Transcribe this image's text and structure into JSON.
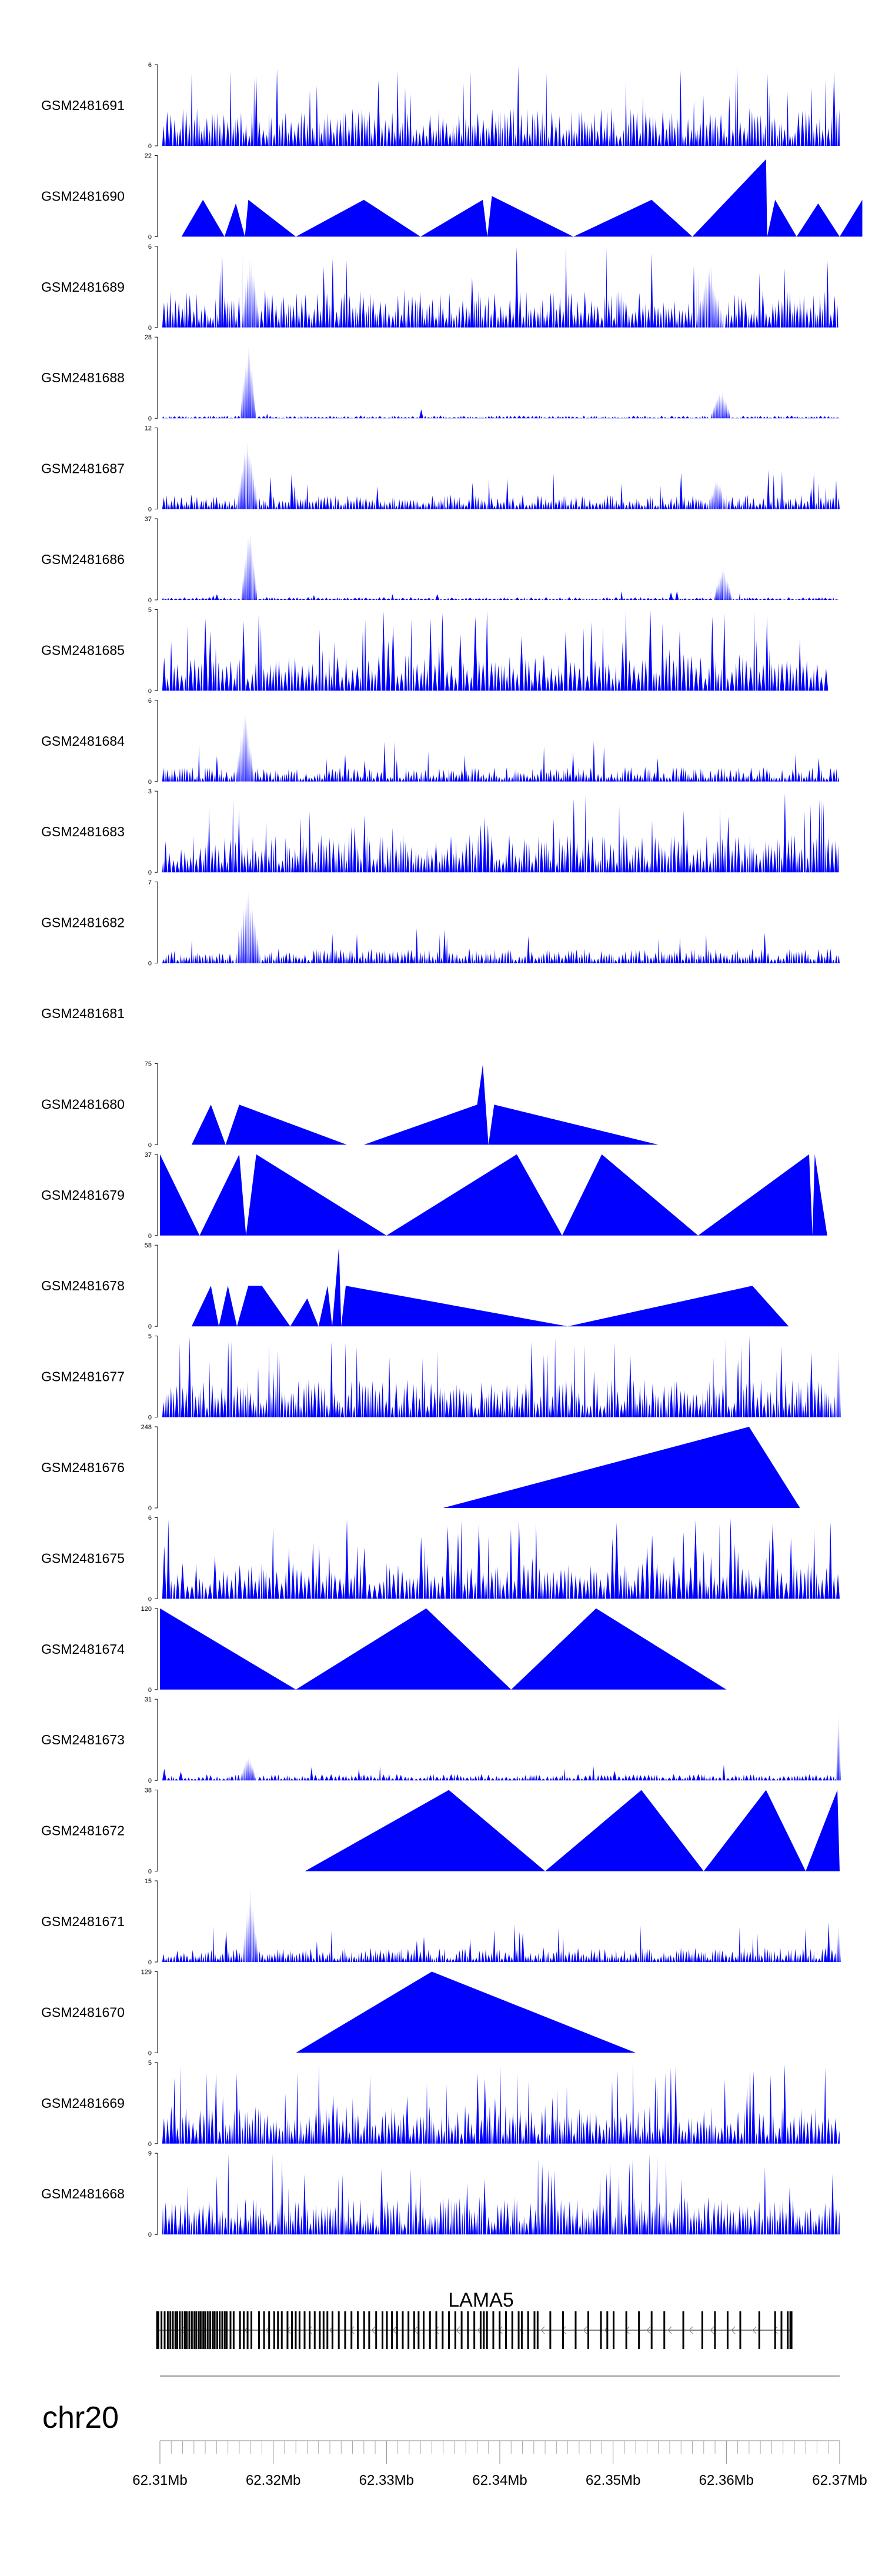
{
  "chart_data": {
    "type": "area",
    "chromosome": "chr20",
    "xlim": [
      62.31,
      62.37
    ],
    "x_ticks": [
      "62.31Mb",
      "62.32Mb",
      "62.33Mb",
      "62.34Mb",
      "62.35Mb",
      "62.36Mb",
      "62.37Mb"
    ],
    "x_tick_values": [
      62.31,
      62.32,
      62.33,
      62.34,
      62.35,
      62.36,
      62.37
    ],
    "gene": {
      "name": "LAMA5",
      "start": 62.3098,
      "end": 62.3657,
      "strand": "-"
    },
    "colors": {
      "signal": "#0000ff",
      "axis": "#000000",
      "gene": "#000000",
      "ideogram": "#999999"
    },
    "tracks": [
      {
        "name": "GSM2481691",
        "ymax": 6,
        "ymax_label": "6",
        "ymin_label": "0",
        "pattern": "dense",
        "seed": 11
      },
      {
        "name": "GSM2481690",
        "ymax": 22,
        "ymax_label": "22",
        "ymin_label": "0",
        "pattern": "peaks",
        "points": [
          [
            62.3119,
            0
          ],
          [
            62.3138,
            10
          ],
          [
            62.3157,
            0
          ],
          [
            62.3167,
            9
          ],
          [
            62.3175,
            0
          ],
          [
            62.3178,
            10
          ],
          [
            62.322,
            0
          ],
          [
            62.328,
            10
          ],
          [
            62.333,
            0
          ],
          [
            62.3385,
            10
          ],
          [
            62.3389,
            0
          ],
          [
            62.3393,
            11
          ],
          [
            62.3465,
            0
          ],
          [
            62.3534,
            10
          ],
          [
            62.357,
            0
          ],
          [
            62.3635,
            21
          ],
          [
            62.3636,
            0
          ],
          [
            62.3643,
            10
          ],
          [
            62.3662,
            0
          ],
          [
            62.3681,
            9
          ],
          [
            62.37,
            0
          ],
          [
            62.372,
            10
          ]
        ]
      },
      {
        "name": "GSM2481689",
        "ymax": 6,
        "ymax_label": "6",
        "ymin_label": "0",
        "pattern": "dense",
        "seed": 23,
        "bumps": [
          [
            62.318,
            5.5,
            0.0008
          ],
          [
            62.3585,
            4.5,
            0.0012
          ]
        ]
      },
      {
        "name": "GSM2481688",
        "ymax": 28,
        "ymax_label": "28",
        "ymin_label": "0",
        "pattern": "sparse",
        "seed": 31,
        "bumps": [
          [
            62.3178,
            26,
            0.0007
          ],
          [
            62.3595,
            10,
            0.0009
          ]
        ]
      },
      {
        "name": "GSM2481687",
        "ymax": 12,
        "ymax_label": "12",
        "ymin_label": "0",
        "pattern": "lowdense",
        "seed": 37,
        "bumps": [
          [
            62.3177,
            11,
            0.0009
          ],
          [
            62.3592,
            5,
            0.0008
          ]
        ]
      },
      {
        "name": "GSM2481686",
        "ymax": 37,
        "ymax_label": "37",
        "ymin_label": "0",
        "pattern": "sparse",
        "seed": 41,
        "bumps": [
          [
            62.3179,
            35,
            0.0007
          ],
          [
            62.3597,
            16,
            0.0008
          ]
        ]
      },
      {
        "name": "GSM2481685",
        "ymax": 5,
        "ymax_label": "5",
        "ymin_label": "0",
        "pattern": "spiky",
        "seed": 47,
        "xend": 62.369
      },
      {
        "name": "GSM2481684",
        "ymax": 6,
        "ymax_label": "6",
        "ymin_label": "0",
        "pattern": "lowdense",
        "seed": 53,
        "bumps": [
          [
            62.3175,
            5.5,
            0.0008
          ]
        ]
      },
      {
        "name": "GSM2481683",
        "ymax": 3,
        "ymax_label": "3",
        "ymin_label": "0",
        "pattern": "dense",
        "seed": 59
      },
      {
        "name": "GSM2481682",
        "ymax": 7,
        "ymax_label": "7",
        "ymin_label": "0",
        "pattern": "lowdense",
        "seed": 61,
        "bumps": [
          [
            62.3178,
            6.5,
            0.0011
          ]
        ]
      },
      {
        "name": "GSM2481681",
        "ymax": null,
        "ymax_label": "",
        "ymin_label": "",
        "pattern": "empty"
      },
      {
        "name": "GSM2481680",
        "ymax": 75,
        "ymax_label": "75",
        "ymin_label": "0",
        "pattern": "peaks",
        "points": [
          [
            62.3128,
            0
          ],
          [
            62.3145,
            37
          ],
          [
            62.3158,
            0
          ],
          [
            62.317,
            37
          ],
          [
            62.3265,
            0
          ],
          [
            62.328,
            0
          ],
          [
            62.338,
            37
          ],
          [
            62.3385,
            74
          ],
          [
            62.339,
            0
          ],
          [
            62.3395,
            37
          ],
          [
            62.354,
            0
          ]
        ]
      },
      {
        "name": "GSM2481679",
        "ymax": 37,
        "ymax_label": "37",
        "ymin_label": "0",
        "pattern": "peaks",
        "points": [
          [
            62.31,
            37
          ],
          [
            62.3135,
            0
          ],
          [
            62.317,
            37
          ],
          [
            62.3176,
            0
          ],
          [
            62.3185,
            37
          ],
          [
            62.33,
            0
          ],
          [
            62.3415,
            37
          ],
          [
            62.3455,
            0
          ],
          [
            62.349,
            37
          ],
          [
            62.3575,
            0
          ],
          [
            62.3673,
            37
          ],
          [
            62.3676,
            0
          ],
          [
            62.3678,
            37
          ],
          [
            62.3689,
            0
          ]
        ]
      },
      {
        "name": "GSM2481678",
        "ymax": 58,
        "ymax_label": "58",
        "ymin_label": "0",
        "pattern": "peaks",
        "points": [
          [
            62.3128,
            0
          ],
          [
            62.3145,
            29
          ],
          [
            62.3152,
            0
          ],
          [
            62.316,
            29
          ],
          [
            62.3168,
            0
          ],
          [
            62.3178,
            29
          ],
          [
            62.319,
            29
          ],
          [
            62.3215,
            0
          ],
          [
            62.323,
            20
          ],
          [
            62.324,
            0
          ],
          [
            62.3248,
            29
          ],
          [
            62.3252,
            0
          ],
          [
            62.3258,
            57
          ],
          [
            62.326,
            0
          ],
          [
            62.3264,
            29
          ],
          [
            62.346,
            0
          ],
          [
            62.3623,
            29
          ],
          [
            62.3655,
            0
          ]
        ]
      },
      {
        "name": "GSM2481677",
        "ymax": 5,
        "ymax_label": "5",
        "ymin_label": "0",
        "pattern": "dense",
        "seed": 71,
        "bumps": [
          [
            62.3699,
            5,
            0.0002
          ]
        ]
      },
      {
        "name": "GSM2481676",
        "ymax": 248,
        "ymax_label": "248",
        "ymin_label": "0",
        "pattern": "peaks",
        "points": [
          [
            62.335,
            0
          ],
          [
            62.362,
            248
          ],
          [
            62.3665,
            0
          ]
        ]
      },
      {
        "name": "GSM2481675",
        "ymax": 6,
        "ymax_label": "6",
        "ymin_label": "0",
        "pattern": "spiky",
        "seed": 79
      },
      {
        "name": "GSM2481674",
        "ymax": 120,
        "ymax_label": "120",
        "ymin_label": "0",
        "pattern": "peaks",
        "points": [
          [
            62.31,
            120
          ],
          [
            62.322,
            0
          ],
          [
            62.3335,
            120
          ],
          [
            62.341,
            0
          ],
          [
            62.3485,
            120
          ],
          [
            62.36,
            0
          ]
        ]
      },
      {
        "name": "GSM2481673",
        "ymax": 31,
        "ymax_label": "31",
        "ymin_label": "0",
        "pattern": "lowsparse",
        "seed": 83,
        "bumps": [
          [
            62.3178,
            10,
            0.0007
          ],
          [
            62.3699,
            30,
            0.0002
          ]
        ]
      },
      {
        "name": "GSM2481672",
        "ymax": 38,
        "ymax_label": "38",
        "ymin_label": "0",
        "pattern": "peaks",
        "points": [
          [
            62.3228,
            0
          ],
          [
            62.3355,
            38
          ],
          [
            62.344,
            0
          ],
          [
            62.3525,
            38
          ],
          [
            62.358,
            0
          ],
          [
            62.3635,
            38
          ],
          [
            62.367,
            0
          ],
          [
            62.3698,
            38
          ],
          [
            62.37,
            0
          ]
        ]
      },
      {
        "name": "GSM2481671",
        "ymax": 15,
        "ymax_label": "15",
        "ymin_label": "0",
        "pattern": "lowdense",
        "seed": 89,
        "bumps": [
          [
            62.318,
            14,
            0.0007
          ],
          [
            62.3699,
            8,
            0.0002
          ]
        ]
      },
      {
        "name": "GSM2481670",
        "ymax": 129,
        "ymax_label": "129",
        "ymin_label": "0",
        "pattern": "peaks",
        "points": [
          [
            62.322,
            0
          ],
          [
            62.334,
            129
          ],
          [
            62.352,
            0
          ]
        ]
      },
      {
        "name": "GSM2481669",
        "ymax": 5,
        "ymax_label": "5",
        "ymin_label": "0",
        "pattern": "dense",
        "seed": 97
      },
      {
        "name": "GSM2481668",
        "ymax": 9,
        "ymax_label": "9",
        "ymin_label": "0",
        "pattern": "dense",
        "seed": 101,
        "bumps": [
          [
            62.3505,
            8.5,
            0.0002
          ]
        ]
      }
    ]
  }
}
